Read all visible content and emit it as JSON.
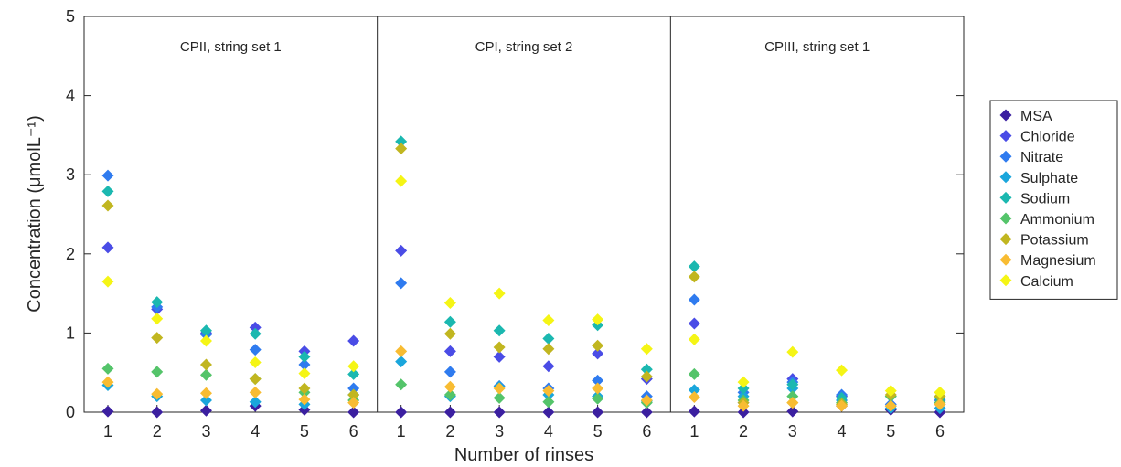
{
  "chart_data": {
    "type": "scatter",
    "xlabel": "Number of rinses",
    "ylabel": "Concentration (μmolL⁻¹)",
    "ylim": [
      0,
      5
    ],
    "yticks": [
      "0",
      "1",
      "2",
      "3",
      "4",
      "5"
    ],
    "xticks": [
      "1",
      "2",
      "3",
      "4",
      "5",
      "6"
    ],
    "legend_position": "right",
    "series": [
      {
        "name": "MSA",
        "color": "#3b1fa0"
      },
      {
        "name": "Chloride",
        "color": "#4a4ce6"
      },
      {
        "name": "Nitrate",
        "color": "#2f7bef"
      },
      {
        "name": "Sulphate",
        "color": "#1aa6dc"
      },
      {
        "name": "Sodium",
        "color": "#1bb8b0"
      },
      {
        "name": "Ammonium",
        "color": "#54c46a"
      },
      {
        "name": "Potassium",
        "color": "#c1b620"
      },
      {
        "name": "Magnesium",
        "color": "#f8bc32"
      },
      {
        "name": "Calcium",
        "color": "#f5f515"
      }
    ],
    "panels": [
      {
        "title": "CPII, string set 1",
        "values": {
          "MSA": [
            0.01,
            0.0,
            0.02,
            0.08,
            0.03,
            0.0
          ],
          "Chloride": [
            2.08,
            1.3,
            1.0,
            1.07,
            0.77,
            0.9
          ],
          "Nitrate": [
            2.99,
            1.33,
            0.98,
            0.79,
            0.6,
            0.3
          ],
          "Sulphate": [
            0.34,
            0.2,
            0.15,
            0.13,
            0.1,
            0.22
          ],
          "Sodium": [
            2.79,
            1.39,
            1.03,
            0.99,
            0.7,
            0.48
          ],
          "Ammonium": [
            0.55,
            0.51,
            0.47,
            0.42,
            0.25,
            0.15
          ],
          "Potassium": [
            2.61,
            0.94,
            0.6,
            0.42,
            0.3,
            0.22
          ],
          "Magnesium": [
            0.38,
            0.23,
            0.24,
            0.25,
            0.16,
            0.12
          ],
          "Calcium": [
            1.65,
            1.18,
            0.9,
            0.63,
            0.49,
            0.58
          ]
        }
      },
      {
        "title": "CPI, string set 2",
        "values": {
          "MSA": [
            0.0,
            0.0,
            0.0,
            0.0,
            0.0,
            0.0
          ],
          "Chloride": [
            2.04,
            0.77,
            0.7,
            0.58,
            0.74,
            0.42
          ],
          "Nitrate": [
            1.63,
            0.51,
            0.33,
            0.3,
            0.4,
            0.2
          ],
          "Sulphate": [
            0.64,
            0.2,
            0.32,
            0.22,
            0.2,
            0.14
          ],
          "Sodium": [
            3.42,
            1.14,
            1.03,
            0.93,
            1.1,
            0.54
          ],
          "Ammonium": [
            0.35,
            0.22,
            0.18,
            0.13,
            0.17,
            0.12
          ],
          "Potassium": [
            3.33,
            0.99,
            0.82,
            0.8,
            0.84,
            0.45
          ],
          "Magnesium": [
            0.77,
            0.32,
            0.3,
            0.27,
            0.3,
            0.15
          ],
          "Calcium": [
            2.92,
            1.38,
            1.5,
            1.16,
            1.17,
            0.8
          ]
        }
      },
      {
        "title": "CPIII, string set 1",
        "values": {
          "MSA": [
            0.01,
            0.0,
            0.01,
            0.08,
            0.03,
            0.0
          ],
          "Chloride": [
            1.12,
            0.12,
            0.42,
            0.2,
            0.08,
            0.1
          ],
          "Nitrate": [
            1.42,
            0.25,
            0.38,
            0.22,
            0.1,
            0.15
          ],
          "Sulphate": [
            0.28,
            0.2,
            0.3,
            0.15,
            0.05,
            0.05
          ],
          "Sodium": [
            1.84,
            0.3,
            0.35,
            0.18,
            0.2,
            0.18
          ],
          "Ammonium": [
            0.48,
            0.15,
            0.2,
            0.12,
            0.2,
            0.12
          ],
          "Potassium": [
            1.71,
            0.12,
            0.12,
            0.1,
            0.22,
            0.2
          ],
          "Magnesium": [
            0.19,
            0.08,
            0.12,
            0.08,
            0.08,
            0.1
          ],
          "Calcium": [
            0.92,
            0.38,
            0.76,
            0.53,
            0.27,
            0.25
          ]
        }
      }
    ]
  }
}
